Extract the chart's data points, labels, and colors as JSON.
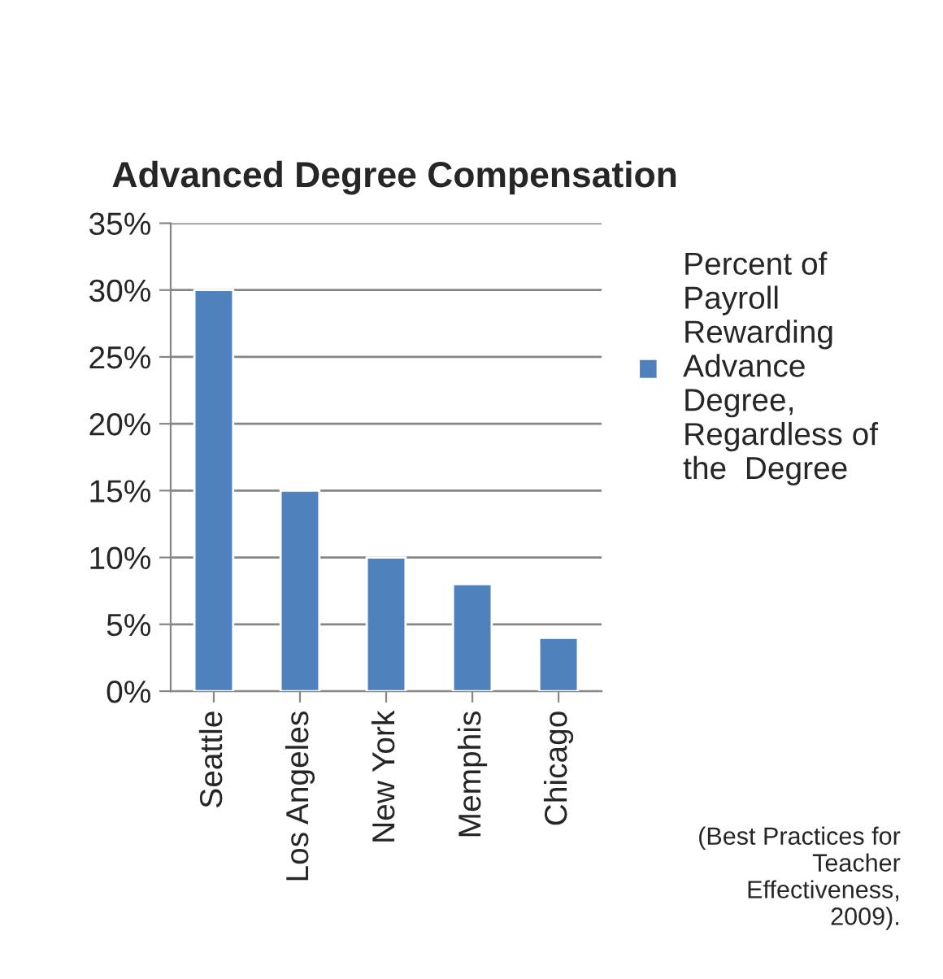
{
  "chart_data": {
    "type": "bar",
    "title": "Advanced Degree Compensation",
    "categories": [
      "Seattle",
      "Los Angeles",
      "New York",
      "Memphis",
      "Chicago"
    ],
    "series": [
      {
        "name": "Percent of Payroll Rewarding Advance Degree, Regardless of the  Degree",
        "color": "#4f81bd",
        "values": [
          30,
          15,
          10,
          8,
          4
        ]
      }
    ],
    "ylim": [
      0,
      35
    ],
    "yticks": [
      {
        "value": 0,
        "label": "0%"
      },
      {
        "value": 5,
        "label": "5%"
      },
      {
        "value": 10,
        "label": "10%"
      },
      {
        "value": 15,
        "label": "15%"
      },
      {
        "value": 20,
        "label": "20%"
      },
      {
        "value": 25,
        "label": "25%"
      },
      {
        "value": 30,
        "label": "30%"
      },
      {
        "value": 35,
        "label": "35%"
      }
    ],
    "grid": "y",
    "legend": "right",
    "annotations": [
      "(Best Practices for Teacher Effectiveness, 2009)."
    ]
  }
}
